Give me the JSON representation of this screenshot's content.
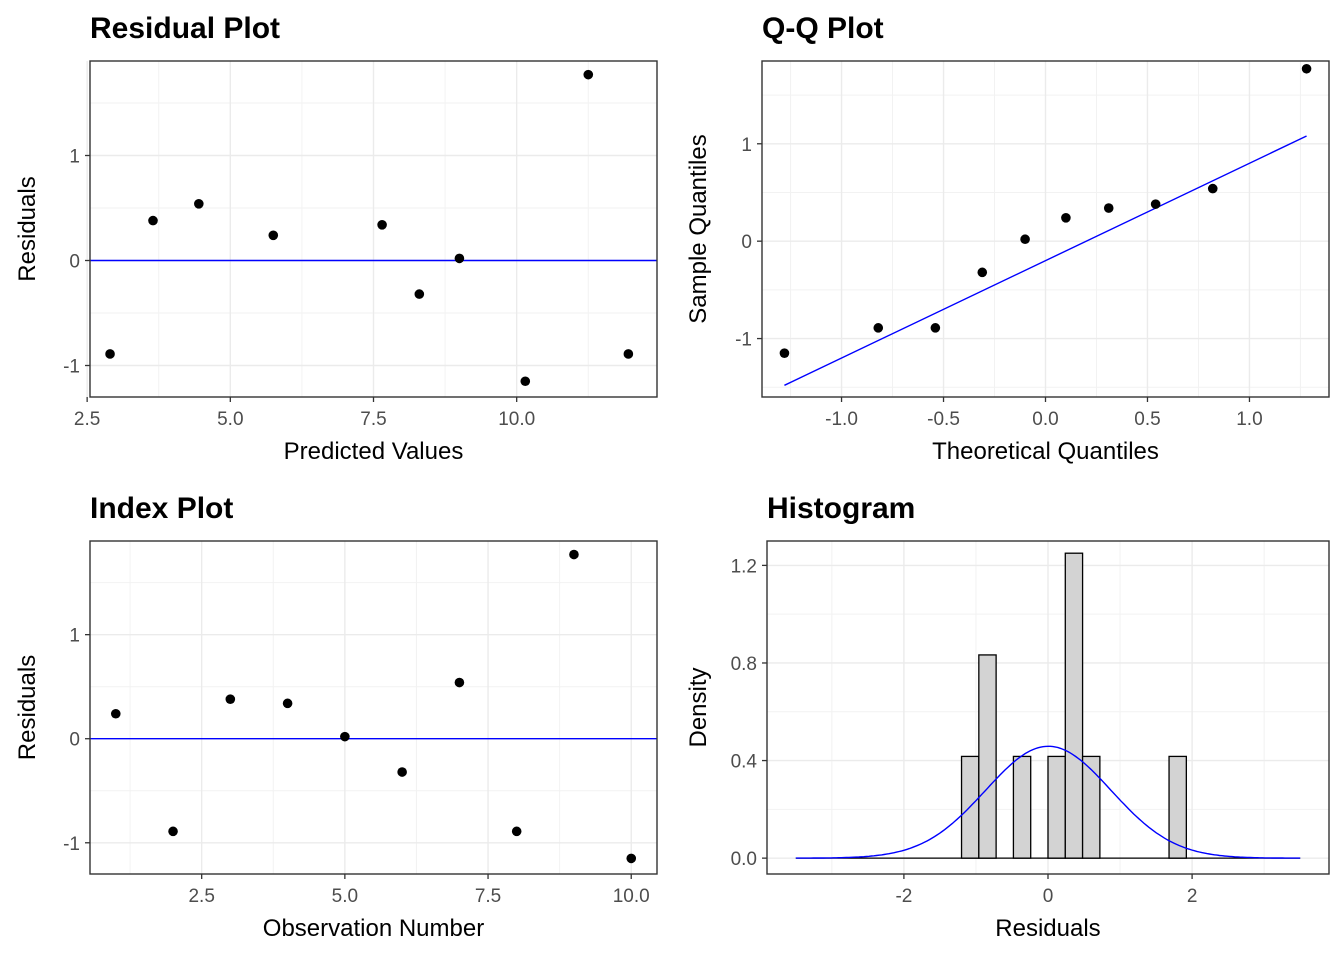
{
  "chart_data": [
    {
      "type": "scatter",
      "title": "Residual Plot",
      "xlabel": "Predicted Values",
      "ylabel": "Residuals",
      "xlim": [
        2.55,
        12.45
      ],
      "ylim": [
        -1.3,
        1.9
      ],
      "xticks": [
        2.5,
        5.0,
        7.5,
        10.0
      ],
      "xtick_labels": [
        "2.5",
        "5.0",
        "7.5",
        "10.0"
      ],
      "yticks": [
        -1,
        0,
        1
      ],
      "ytick_labels": [
        "-1",
        "0",
        "1"
      ],
      "x": [
        2.9,
        3.65,
        4.45,
        5.75,
        7.65,
        8.3,
        9.0,
        10.15,
        11.25,
        11.95
      ],
      "y": [
        -0.89,
        0.38,
        0.54,
        0.24,
        0.34,
        -0.32,
        0.02,
        -1.15,
        1.77,
        -0.89
      ],
      "hline": 0,
      "line_color": "#0000ff",
      "grid": true
    },
    {
      "type": "scatter",
      "title": "Q-Q Plot",
      "xlabel": "Theoretical Quantiles",
      "ylabel": "Sample Quantiles",
      "xlim": [
        -1.39,
        1.39
      ],
      "ylim": [
        -1.6,
        1.85
      ],
      "xticks": [
        -1.0,
        -0.5,
        0.0,
        0.5,
        1.0
      ],
      "xtick_labels": [
        "-1.0",
        "-0.5",
        "0.0",
        "0.5",
        "1.0"
      ],
      "yticks": [
        -1,
        0,
        1
      ],
      "ytick_labels": [
        "-1",
        "0",
        "1"
      ],
      "x": [
        -1.28,
        -0.82,
        -0.54,
        -0.31,
        -0.1,
        0.1,
        0.31,
        0.54,
        0.82,
        1.28
      ],
      "y": [
        -1.15,
        -0.89,
        -0.89,
        -0.32,
        0.02,
        0.24,
        0.34,
        0.38,
        0.54,
        1.77
      ],
      "ref_line": {
        "x": [
          -1.28,
          1.28
        ],
        "y": [
          -1.48,
          1.08
        ]
      },
      "line_color": "#0000ff",
      "grid": true
    },
    {
      "type": "scatter",
      "title": "Index Plot",
      "xlabel": "Observation Number",
      "ylabel": "Residuals",
      "xlim": [
        0.55,
        10.45
      ],
      "ylim": [
        -1.3,
        1.9
      ],
      "xticks": [
        2.5,
        5.0,
        7.5,
        10.0
      ],
      "xtick_labels": [
        "2.5",
        "5.0",
        "7.5",
        "10.0"
      ],
      "yticks": [
        -1,
        0,
        1
      ],
      "ytick_labels": [
        "-1",
        "0",
        "1"
      ],
      "x": [
        1,
        2,
        3,
        4,
        5,
        6,
        7,
        8,
        9,
        10
      ],
      "y": [
        0.24,
        -0.89,
        0.38,
        0.34,
        0.02,
        -0.32,
        0.54,
        -0.89,
        1.77,
        -1.15
      ],
      "hline": 0,
      "line_color": "#0000ff",
      "grid": true
    },
    {
      "type": "bar",
      "title": "Histogram",
      "xlabel": "Residuals",
      "ylabel": "Density",
      "xlim": [
        -3.9,
        3.9
      ],
      "ylim": [
        -0.065,
        1.3
      ],
      "xticks": [
        -2,
        0,
        2
      ],
      "xtick_labels": [
        "-2",
        "0",
        "2"
      ],
      "yticks": [
        0.0,
        0.4,
        0.8,
        1.2
      ],
      "ytick_labels": [
        "0.0",
        "0.4",
        "0.8",
        "1.2"
      ],
      "bins": [
        {
          "x0": -1.2,
          "x1": -0.96,
          "density": 0.417
        },
        {
          "x0": -0.96,
          "x1": -0.72,
          "density": 0.833
        },
        {
          "x0": -0.48,
          "x1": -0.24,
          "density": 0.417
        },
        {
          "x0": 0.0,
          "x1": 0.24,
          "density": 0.417
        },
        {
          "x0": 0.24,
          "x1": 0.48,
          "density": 1.25
        },
        {
          "x0": 0.48,
          "x1": 0.72,
          "density": 0.417
        },
        {
          "x0": 1.68,
          "x1": 1.92,
          "density": 0.417
        }
      ],
      "baseline_range": [
        -3.5,
        3.5
      ],
      "density_curve": {
        "mean": 0.004,
        "sd": 0.87
      },
      "bar_fill": "#d3d3d3",
      "line_color": "#0000ff",
      "grid": true
    }
  ]
}
